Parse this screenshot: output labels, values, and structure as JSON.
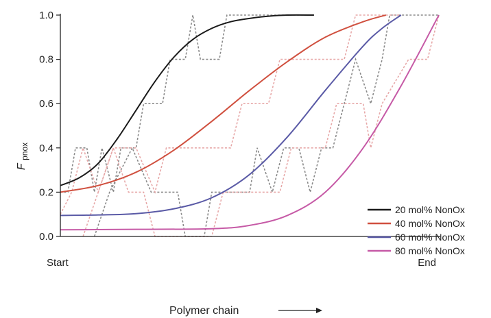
{
  "chart_data": {
    "type": "line",
    "title": "",
    "xlabel": "Polymer chain",
    "ylabel": {
      "main": "F",
      "sub": "pnox"
    },
    "x_tick_labels": [
      "Start",
      "End"
    ],
    "xlim": [
      0,
      1
    ],
    "ylim": [
      0,
      1.0
    ],
    "y_ticks": [
      0.0,
      0.2,
      0.4,
      0.6,
      0.8,
      1.0
    ],
    "y_tick_labels": [
      "0.0",
      "0.2",
      "0.4",
      "0.6",
      "0.8",
      "1.0"
    ],
    "grid": false,
    "legend_position": "bottom-right",
    "series": [
      {
        "name": "20 mol% NonOx",
        "color": "#1a1a1a",
        "points": [
          [
            0,
            0.23
          ],
          [
            0.05,
            0.265
          ],
          [
            0.1,
            0.33
          ],
          [
            0.15,
            0.44
          ],
          [
            0.2,
            0.57
          ],
          [
            0.25,
            0.7
          ],
          [
            0.3,
            0.81
          ],
          [
            0.35,
            0.89
          ],
          [
            0.4,
            0.94
          ],
          [
            0.45,
            0.97
          ],
          [
            0.5,
            0.985
          ],
          [
            0.55,
            0.995
          ],
          [
            0.6,
            1.0
          ],
          [
            0.67,
            1.0
          ]
        ]
      },
      {
        "name": "40 mol% NonOx",
        "color": "#d0503f",
        "points": [
          [
            0,
            0.2
          ],
          [
            0.1,
            0.23
          ],
          [
            0.2,
            0.29
          ],
          [
            0.3,
            0.39
          ],
          [
            0.4,
            0.52
          ],
          [
            0.5,
            0.66
          ],
          [
            0.6,
            0.79
          ],
          [
            0.7,
            0.9
          ],
          [
            0.8,
            0.97
          ],
          [
            0.86,
            1.0
          ]
        ]
      },
      {
        "name": "60 mol% NonOx",
        "color": "#5a5aa6",
        "points": [
          [
            0,
            0.095
          ],
          [
            0.1,
            0.097
          ],
          [
            0.2,
            0.103
          ],
          [
            0.3,
            0.125
          ],
          [
            0.4,
            0.175
          ],
          [
            0.5,
            0.28
          ],
          [
            0.6,
            0.45
          ],
          [
            0.7,
            0.66
          ],
          [
            0.8,
            0.86
          ],
          [
            0.85,
            0.94
          ],
          [
            0.9,
            1.0
          ]
        ]
      },
      {
        "name": "80 mol% NonOx",
        "color": "#c65aa6",
        "points": [
          [
            0,
            0.03
          ],
          [
            0.2,
            0.032
          ],
          [
            0.4,
            0.035
          ],
          [
            0.5,
            0.05
          ],
          [
            0.6,
            0.095
          ],
          [
            0.7,
            0.2
          ],
          [
            0.8,
            0.4
          ],
          [
            0.9,
            0.68
          ],
          [
            1.0,
            1.0
          ]
        ]
      }
    ],
    "steps": [
      {
        "color": "#8a8a8a",
        "points": [
          [
            0,
            0.2
          ],
          [
            0.02,
            0.2
          ],
          [
            0.04,
            0.4
          ],
          [
            0.07,
            0.4
          ],
          [
            0.09,
            0.2
          ],
          [
            0.11,
            0.4
          ],
          [
            0.14,
            0.2
          ],
          [
            0.16,
            0.4
          ],
          [
            0.2,
            0.4
          ],
          [
            0.22,
            0.6
          ],
          [
            0.27,
            0.6
          ],
          [
            0.29,
            0.8
          ],
          [
            0.33,
            0.8
          ],
          [
            0.35,
            1.0
          ],
          [
            0.37,
            0.8
          ],
          [
            0.42,
            0.8
          ],
          [
            0.44,
            1.0
          ],
          [
            0.67,
            1.0
          ]
        ]
      },
      {
        "color": "#8a8a8a",
        "points": [
          [
            0.09,
            0.0
          ],
          [
            0.13,
            0.2
          ],
          [
            0.19,
            0.4
          ],
          [
            0.24,
            0.2
          ],
          [
            0.31,
            0.2
          ],
          [
            0.33,
            0.0
          ],
          [
            0.38,
            0.0
          ],
          [
            0.4,
            0.2
          ],
          [
            0.5,
            0.2
          ],
          [
            0.52,
            0.4
          ],
          [
            0.56,
            0.2
          ],
          [
            0.59,
            0.4
          ],
          [
            0.63,
            0.4
          ],
          [
            0.66,
            0.2
          ],
          [
            0.69,
            0.4
          ],
          [
            0.72,
            0.4
          ],
          [
            0.75,
            0.6
          ],
          [
            0.78,
            0.8
          ],
          [
            0.82,
            0.6
          ],
          [
            0.85,
            0.8
          ],
          [
            0.87,
            1.0
          ],
          [
            1.0,
            1.0
          ]
        ]
      },
      {
        "color": "#e7a8a8",
        "points": [
          [
            0,
            0.1
          ],
          [
            0.03,
            0.2
          ],
          [
            0.06,
            0.4
          ],
          [
            0.1,
            0.2
          ],
          [
            0.14,
            0.4
          ],
          [
            0.2,
            0.4
          ],
          [
            0.25,
            0.2
          ],
          [
            0.28,
            0.4
          ],
          [
            0.45,
            0.4
          ],
          [
            0.48,
            0.6
          ],
          [
            0.55,
            0.6
          ],
          [
            0.58,
            0.8
          ],
          [
            0.75,
            0.8
          ],
          [
            0.78,
            1.0
          ],
          [
            0.9,
            1.0
          ]
        ]
      },
      {
        "color": "#e7a8a8",
        "points": [
          [
            0.06,
            0.0
          ],
          [
            0.1,
            0.2
          ],
          [
            0.14,
            0.4
          ],
          [
            0.18,
            0.2
          ],
          [
            0.22,
            0.2
          ],
          [
            0.25,
            0.0
          ],
          [
            0.4,
            0.0
          ],
          [
            0.43,
            0.2
          ],
          [
            0.58,
            0.2
          ],
          [
            0.61,
            0.4
          ],
          [
            0.7,
            0.4
          ],
          [
            0.73,
            0.6
          ],
          [
            0.8,
            0.6
          ],
          [
            0.82,
            0.4
          ],
          [
            0.85,
            0.6
          ],
          [
            0.92,
            0.8
          ],
          [
            0.97,
            0.8
          ],
          [
            1.0,
            1.0
          ]
        ]
      }
    ]
  }
}
